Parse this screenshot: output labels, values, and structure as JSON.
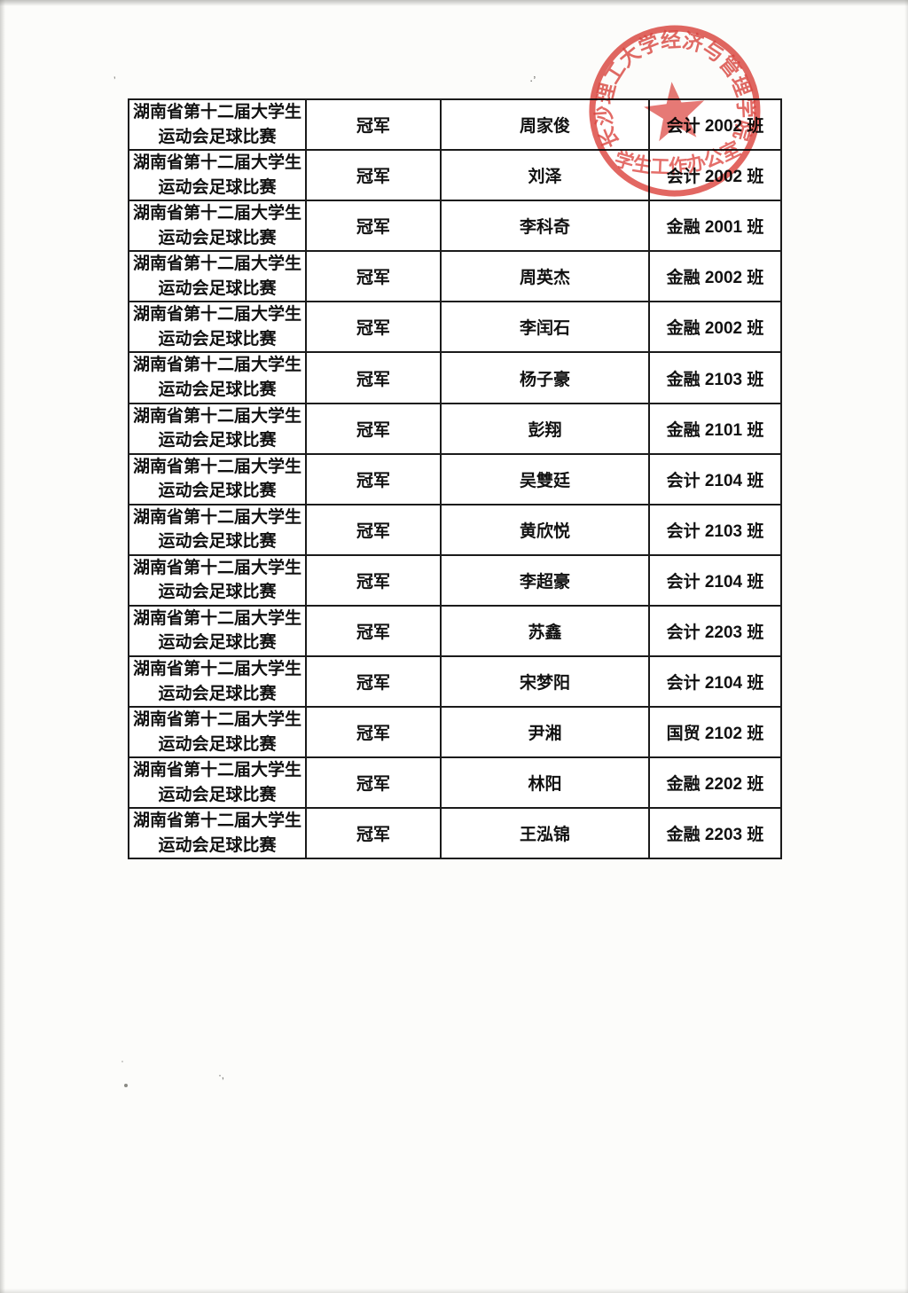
{
  "page": {
    "background_color": "#fcfcfa",
    "kind": "scanned award list document"
  },
  "stamp": {
    "arc_text": "长沙理工大学经济与管理学院",
    "bottom_text": "学生工作办公室",
    "color": "#d8342e"
  },
  "table": {
    "columns": [
      "event",
      "award",
      "name",
      "class"
    ],
    "rows": [
      {
        "event": [
          "湖南省第十二届大学生",
          "运动会足球比赛"
        ],
        "award": "冠军",
        "name": "周家俊",
        "class": "会计 2002 班"
      },
      {
        "event": [
          "湖南省第十二届大学生",
          "运动会足球比赛"
        ],
        "award": "冠军",
        "name": "刘泽",
        "class": "会计 2002 班"
      },
      {
        "event": [
          "湖南省第十二届大学生",
          "运动会足球比赛"
        ],
        "award": "冠军",
        "name": "李科奇",
        "class": "金融 2001 班"
      },
      {
        "event": [
          "湖南省第十二届大学生",
          "运动会足球比赛"
        ],
        "award": "冠军",
        "name": "周英杰",
        "class": "金融 2002 班"
      },
      {
        "event": [
          "湖南省第十二届大学生",
          "运动会足球比赛"
        ],
        "award": "冠军",
        "name": "李闰石",
        "class": "金融 2002 班"
      },
      {
        "event": [
          "湖南省第十二届大学生",
          "运动会足球比赛"
        ],
        "award": "冠军",
        "name": "杨子豪",
        "class": "金融 2103 班"
      },
      {
        "event": [
          "湖南省第十二届大学生",
          "运动会足球比赛"
        ],
        "award": "冠军",
        "name": "彭翔",
        "class": "金融 2101 班"
      },
      {
        "event": [
          "湖南省第十二届大学生",
          "运动会足球比赛"
        ],
        "award": "冠军",
        "name": "吴雙廷",
        "class": "会计 2104 班"
      },
      {
        "event": [
          "湖南省第十二届大学生",
          "运动会足球比赛"
        ],
        "award": "冠军",
        "name": "黄欣悦",
        "class": "会计 2103 班"
      },
      {
        "event": [
          "湖南省第十二届大学生",
          "运动会足球比赛"
        ],
        "award": "冠军",
        "name": "李超豪",
        "class": "会计 2104 班"
      },
      {
        "event": [
          "湖南省第十二届大学生",
          "运动会足球比赛"
        ],
        "award": "冠军",
        "name": "苏鑫",
        "class": "会计 2203 班"
      },
      {
        "event": [
          "湖南省第十二届大学生",
          "运动会足球比赛"
        ],
        "award": "冠军",
        "name": "宋梦阳",
        "class": "会计 2104 班"
      },
      {
        "event": [
          "湖南省第十二届大学生",
          "运动会足球比赛"
        ],
        "award": "冠军",
        "name": "尹湘",
        "class": "国贸 2102 班"
      },
      {
        "event": [
          "湖南省第十二届大学生",
          "运动会足球比赛"
        ],
        "award": "冠军",
        "name": "林阳",
        "class": "金融 2202 班"
      },
      {
        "event": [
          "湖南省第十二届大学生",
          "运动会足球比赛"
        ],
        "award": "冠军",
        "name": "王泓锦",
        "class": "金融 2203 班"
      }
    ]
  }
}
